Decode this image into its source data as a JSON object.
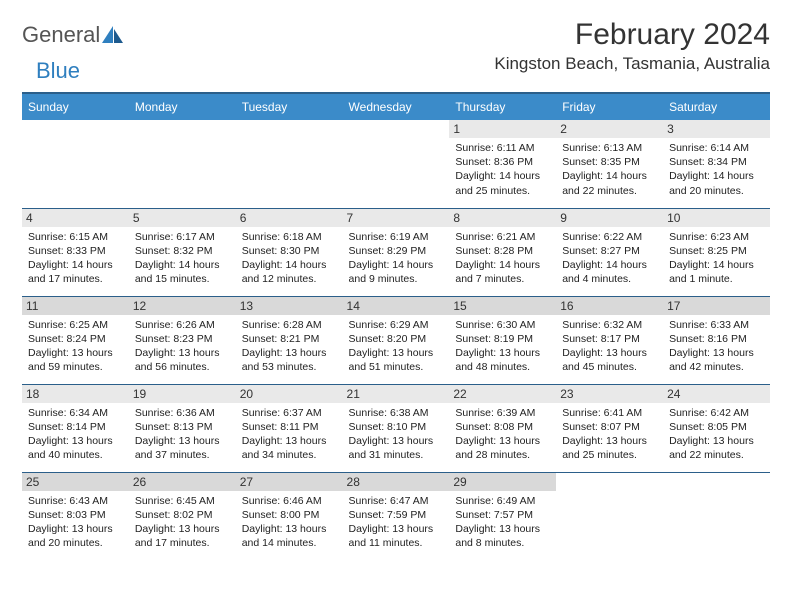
{
  "logo": {
    "part1": "General",
    "part2": "Blue"
  },
  "title": "February 2024",
  "location": "Kingston Beach, Tasmania, Australia",
  "day_headers": [
    "Sunday",
    "Monday",
    "Tuesday",
    "Wednesday",
    "Thursday",
    "Friday",
    "Saturday"
  ],
  "colors": {
    "header_bg": "#3b8bc9",
    "header_text": "#ffffff",
    "rule": "#2b5f8a",
    "daynum_bg": "#e9e9e9",
    "daynum_bg_alt": "#d9d9d9",
    "body_text": "#222222"
  },
  "weeks": [
    [
      {
        "n": "",
        "sunrise": "",
        "sunset": "",
        "daylight": ""
      },
      {
        "n": "",
        "sunrise": "",
        "sunset": "",
        "daylight": ""
      },
      {
        "n": "",
        "sunrise": "",
        "sunset": "",
        "daylight": ""
      },
      {
        "n": "",
        "sunrise": "",
        "sunset": "",
        "daylight": ""
      },
      {
        "n": "1",
        "sunrise": "Sunrise: 6:11 AM",
        "sunset": "Sunset: 8:36 PM",
        "daylight": "Daylight: 14 hours and 25 minutes."
      },
      {
        "n": "2",
        "sunrise": "Sunrise: 6:13 AM",
        "sunset": "Sunset: 8:35 PM",
        "daylight": "Daylight: 14 hours and 22 minutes."
      },
      {
        "n": "3",
        "sunrise": "Sunrise: 6:14 AM",
        "sunset": "Sunset: 8:34 PM",
        "daylight": "Daylight: 14 hours and 20 minutes."
      }
    ],
    [
      {
        "n": "4",
        "sunrise": "Sunrise: 6:15 AM",
        "sunset": "Sunset: 8:33 PM",
        "daylight": "Daylight: 14 hours and 17 minutes."
      },
      {
        "n": "5",
        "sunrise": "Sunrise: 6:17 AM",
        "sunset": "Sunset: 8:32 PM",
        "daylight": "Daylight: 14 hours and 15 minutes."
      },
      {
        "n": "6",
        "sunrise": "Sunrise: 6:18 AM",
        "sunset": "Sunset: 8:30 PM",
        "daylight": "Daylight: 14 hours and 12 minutes."
      },
      {
        "n": "7",
        "sunrise": "Sunrise: 6:19 AM",
        "sunset": "Sunset: 8:29 PM",
        "daylight": "Daylight: 14 hours and 9 minutes."
      },
      {
        "n": "8",
        "sunrise": "Sunrise: 6:21 AM",
        "sunset": "Sunset: 8:28 PM",
        "daylight": "Daylight: 14 hours and 7 minutes."
      },
      {
        "n": "9",
        "sunrise": "Sunrise: 6:22 AM",
        "sunset": "Sunset: 8:27 PM",
        "daylight": "Daylight: 14 hours and 4 minutes."
      },
      {
        "n": "10",
        "sunrise": "Sunrise: 6:23 AM",
        "sunset": "Sunset: 8:25 PM",
        "daylight": "Daylight: 14 hours and 1 minute."
      }
    ],
    [
      {
        "n": "11",
        "sunrise": "Sunrise: 6:25 AM",
        "sunset": "Sunset: 8:24 PM",
        "daylight": "Daylight: 13 hours and 59 minutes."
      },
      {
        "n": "12",
        "sunrise": "Sunrise: 6:26 AM",
        "sunset": "Sunset: 8:23 PM",
        "daylight": "Daylight: 13 hours and 56 minutes."
      },
      {
        "n": "13",
        "sunrise": "Sunrise: 6:28 AM",
        "sunset": "Sunset: 8:21 PM",
        "daylight": "Daylight: 13 hours and 53 minutes."
      },
      {
        "n": "14",
        "sunrise": "Sunrise: 6:29 AM",
        "sunset": "Sunset: 8:20 PM",
        "daylight": "Daylight: 13 hours and 51 minutes."
      },
      {
        "n": "15",
        "sunrise": "Sunrise: 6:30 AM",
        "sunset": "Sunset: 8:19 PM",
        "daylight": "Daylight: 13 hours and 48 minutes."
      },
      {
        "n": "16",
        "sunrise": "Sunrise: 6:32 AM",
        "sunset": "Sunset: 8:17 PM",
        "daylight": "Daylight: 13 hours and 45 minutes."
      },
      {
        "n": "17",
        "sunrise": "Sunrise: 6:33 AM",
        "sunset": "Sunset: 8:16 PM",
        "daylight": "Daylight: 13 hours and 42 minutes."
      }
    ],
    [
      {
        "n": "18",
        "sunrise": "Sunrise: 6:34 AM",
        "sunset": "Sunset: 8:14 PM",
        "daylight": "Daylight: 13 hours and 40 minutes."
      },
      {
        "n": "19",
        "sunrise": "Sunrise: 6:36 AM",
        "sunset": "Sunset: 8:13 PM",
        "daylight": "Daylight: 13 hours and 37 minutes."
      },
      {
        "n": "20",
        "sunrise": "Sunrise: 6:37 AM",
        "sunset": "Sunset: 8:11 PM",
        "daylight": "Daylight: 13 hours and 34 minutes."
      },
      {
        "n": "21",
        "sunrise": "Sunrise: 6:38 AM",
        "sunset": "Sunset: 8:10 PM",
        "daylight": "Daylight: 13 hours and 31 minutes."
      },
      {
        "n": "22",
        "sunrise": "Sunrise: 6:39 AM",
        "sunset": "Sunset: 8:08 PM",
        "daylight": "Daylight: 13 hours and 28 minutes."
      },
      {
        "n": "23",
        "sunrise": "Sunrise: 6:41 AM",
        "sunset": "Sunset: 8:07 PM",
        "daylight": "Daylight: 13 hours and 25 minutes."
      },
      {
        "n": "24",
        "sunrise": "Sunrise: 6:42 AM",
        "sunset": "Sunset: 8:05 PM",
        "daylight": "Daylight: 13 hours and 22 minutes."
      }
    ],
    [
      {
        "n": "25",
        "sunrise": "Sunrise: 6:43 AM",
        "sunset": "Sunset: 8:03 PM",
        "daylight": "Daylight: 13 hours and 20 minutes."
      },
      {
        "n": "26",
        "sunrise": "Sunrise: 6:45 AM",
        "sunset": "Sunset: 8:02 PM",
        "daylight": "Daylight: 13 hours and 17 minutes."
      },
      {
        "n": "27",
        "sunrise": "Sunrise: 6:46 AM",
        "sunset": "Sunset: 8:00 PM",
        "daylight": "Daylight: 13 hours and 14 minutes."
      },
      {
        "n": "28",
        "sunrise": "Sunrise: 6:47 AM",
        "sunset": "Sunset: 7:59 PM",
        "daylight": "Daylight: 13 hours and 11 minutes."
      },
      {
        "n": "29",
        "sunrise": "Sunrise: 6:49 AM",
        "sunset": "Sunset: 7:57 PM",
        "daylight": "Daylight: 13 hours and 8 minutes."
      },
      {
        "n": "",
        "sunrise": "",
        "sunset": "",
        "daylight": ""
      },
      {
        "n": "",
        "sunrise": "",
        "sunset": "",
        "daylight": ""
      }
    ]
  ]
}
